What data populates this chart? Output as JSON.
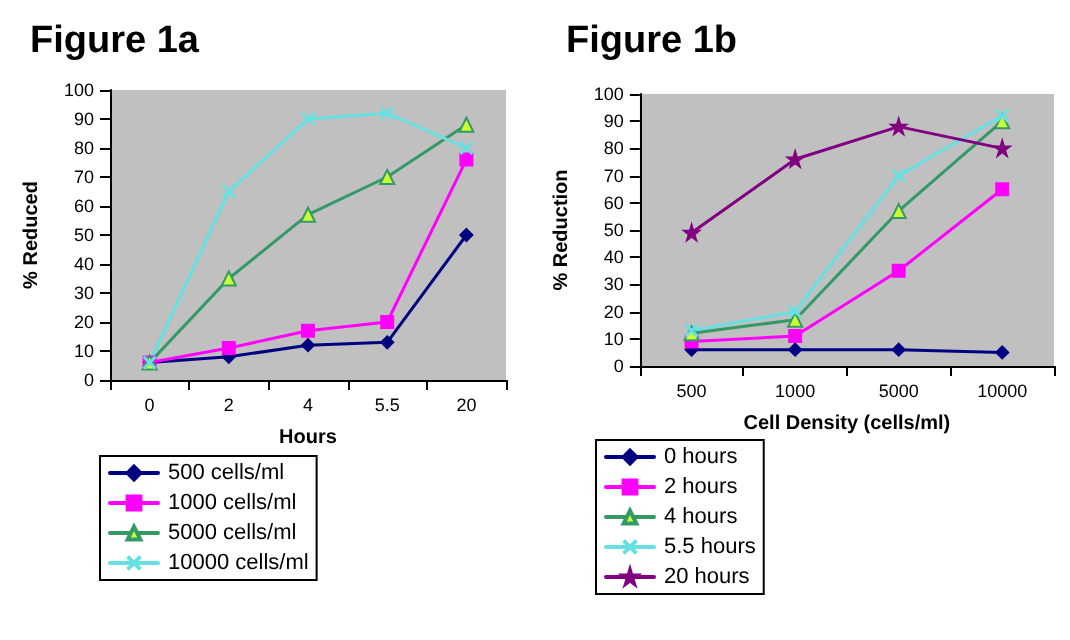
{
  "chart_data": [
    {
      "type": "line",
      "title": "Figure 1a",
      "xlabel": "Hours",
      "ylabel": "% Reduced",
      "categories": [
        "0",
        "2",
        "4",
        "5.5",
        "20"
      ],
      "ylim": [
        0,
        100
      ],
      "yticks": [
        0,
        10,
        20,
        30,
        40,
        50,
        60,
        70,
        80,
        90,
        100
      ],
      "grid": false,
      "legend": "bottom",
      "line_style": "solid",
      "series": [
        {
          "name": "500 cells/ml",
          "color": "#000080",
          "marker": "diamond",
          "values": [
            6,
            8,
            12,
            13,
            50
          ]
        },
        {
          "name": "1000 cells/ml",
          "color": "#ff00ff",
          "marker": "square",
          "values": [
            6,
            11,
            17,
            20,
            76
          ]
        },
        {
          "name": "5000 cells/ml",
          "color": "#339966",
          "marker": "triangle",
          "values": [
            6,
            35,
            57,
            70,
            88
          ]
        },
        {
          "name": "10000 cells/ml",
          "color": "#66e0e0",
          "marker": "cross",
          "values": [
            6,
            65,
            90,
            92,
            80
          ]
        }
      ]
    },
    {
      "type": "line",
      "title": "Figure 1b",
      "xlabel": "Cell Density (cells/ml)",
      "ylabel": "% Reduction",
      "categories": [
        "500",
        "1000",
        "5000",
        "10000"
      ],
      "ylim": [
        0,
        100
      ],
      "yticks": [
        0,
        10,
        20,
        30,
        40,
        50,
        60,
        70,
        80,
        90,
        100
      ],
      "grid": false,
      "legend": "bottom",
      "line_style": "solid",
      "series": [
        {
          "name": "0 hours",
          "color": "#000080",
          "marker": "diamond",
          "values": [
            6,
            6,
            6,
            5
          ]
        },
        {
          "name": "2 hours",
          "color": "#ff00ff",
          "marker": "square",
          "values": [
            9,
            11,
            35,
            65
          ]
        },
        {
          "name": "4 hours",
          "color": "#339966",
          "marker": "triangle",
          "values": [
            12,
            17,
            57,
            90
          ]
        },
        {
          "name": "5.5 hours",
          "color": "#66e0e0",
          "marker": "cross",
          "values": [
            13,
            20,
            70,
            92
          ]
        },
        {
          "name": "20 hours",
          "color": "#800080",
          "marker": "star",
          "values": [
            49,
            76,
            88,
            80
          ]
        }
      ]
    }
  ]
}
